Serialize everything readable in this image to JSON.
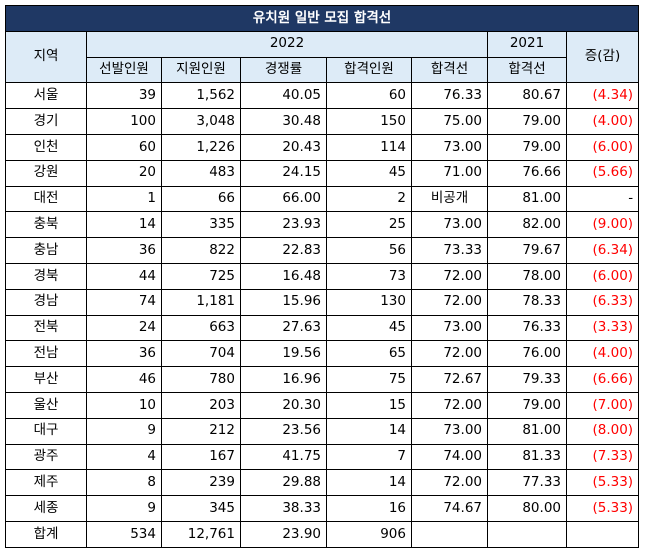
{
  "title": "유치원 일반 모집 합격선",
  "headers": {
    "region": "지역",
    "year_2022": "2022",
    "year_2021": "2021",
    "change": "증(감)",
    "sub": [
      "선발인원",
      "지원인원",
      "경쟁률",
      "합격인원",
      "합격선",
      "합격선"
    ]
  },
  "rows": [
    {
      "region": "서울",
      "selected": "39",
      "applicants": "1,562",
      "ratio": "40.05",
      "passed": "60",
      "cutoff_2022": "76.33",
      "cutoff_2021": "80.67",
      "change": "(4.34)"
    },
    {
      "region": "경기",
      "selected": "100",
      "applicants": "3,048",
      "ratio": "30.48",
      "passed": "150",
      "cutoff_2022": "75.00",
      "cutoff_2021": "79.00",
      "change": "(4.00)"
    },
    {
      "region": "인천",
      "selected": "60",
      "applicants": "1,226",
      "ratio": "20.43",
      "passed": "114",
      "cutoff_2022": "73.00",
      "cutoff_2021": "79.00",
      "change": "(6.00)"
    },
    {
      "region": "강원",
      "selected": "20",
      "applicants": "483",
      "ratio": "24.15",
      "passed": "45",
      "cutoff_2022": "71.00",
      "cutoff_2021": "76.66",
      "change": "(5.66)"
    },
    {
      "region": "대전",
      "selected": "1",
      "applicants": "66",
      "ratio": "66.00",
      "passed": "2",
      "cutoff_2022": "비공개",
      "cutoff_2021": "81.00",
      "change": "-"
    },
    {
      "region": "충북",
      "selected": "14",
      "applicants": "335",
      "ratio": "23.93",
      "passed": "25",
      "cutoff_2022": "73.00",
      "cutoff_2021": "82.00",
      "change": "(9.00)"
    },
    {
      "region": "충남",
      "selected": "36",
      "applicants": "822",
      "ratio": "22.83",
      "passed": "56",
      "cutoff_2022": "73.33",
      "cutoff_2021": "79.67",
      "change": "(6.34)"
    },
    {
      "region": "경북",
      "selected": "44",
      "applicants": "725",
      "ratio": "16.48",
      "passed": "73",
      "cutoff_2022": "72.00",
      "cutoff_2021": "78.00",
      "change": "(6.00)"
    },
    {
      "region": "경남",
      "selected": "74",
      "applicants": "1,181",
      "ratio": "15.96",
      "passed": "130",
      "cutoff_2022": "72.00",
      "cutoff_2021": "78.33",
      "change": "(6.33)"
    },
    {
      "region": "전북",
      "selected": "24",
      "applicants": "663",
      "ratio": "27.63",
      "passed": "45",
      "cutoff_2022": "73.00",
      "cutoff_2021": "76.33",
      "change": "(3.33)"
    },
    {
      "region": "전남",
      "selected": "36",
      "applicants": "704",
      "ratio": "19.56",
      "passed": "65",
      "cutoff_2022": "72.00",
      "cutoff_2021": "76.00",
      "change": "(4.00)"
    },
    {
      "region": "부산",
      "selected": "46",
      "applicants": "780",
      "ratio": "16.96",
      "passed": "75",
      "cutoff_2022": "72.67",
      "cutoff_2021": "79.33",
      "change": "(6.66)"
    },
    {
      "region": "울산",
      "selected": "10",
      "applicants": "203",
      "ratio": "20.30",
      "passed": "15",
      "cutoff_2022": "72.00",
      "cutoff_2021": "79.00",
      "change": "(7.00)"
    },
    {
      "region": "대구",
      "selected": "9",
      "applicants": "212",
      "ratio": "23.56",
      "passed": "14",
      "cutoff_2022": "73.00",
      "cutoff_2021": "81.00",
      "change": "(8.00)"
    },
    {
      "region": "광주",
      "selected": "4",
      "applicants": "167",
      "ratio": "41.75",
      "passed": "7",
      "cutoff_2022": "74.00",
      "cutoff_2021": "81.33",
      "change": "(7.33)"
    },
    {
      "region": "제주",
      "selected": "8",
      "applicants": "239",
      "ratio": "29.88",
      "passed": "14",
      "cutoff_2022": "72.00",
      "cutoff_2021": "77.33",
      "change": "(5.33)"
    },
    {
      "region": "세종",
      "selected": "9",
      "applicants": "345",
      "ratio": "38.33",
      "passed": "16",
      "cutoff_2022": "74.67",
      "cutoff_2021": "80.00",
      "change": "(5.33)"
    }
  ],
  "total": {
    "region": "합계",
    "selected": "534",
    "applicants": "12,761",
    "ratio": "23.90",
    "passed": "906",
    "cutoff_2022": "",
    "cutoff_2021": "",
    "change": ""
  },
  "colors": {
    "title_bg": "#1F3864",
    "header_bg": "#DDEBF7",
    "negative": "#FF0000"
  }
}
